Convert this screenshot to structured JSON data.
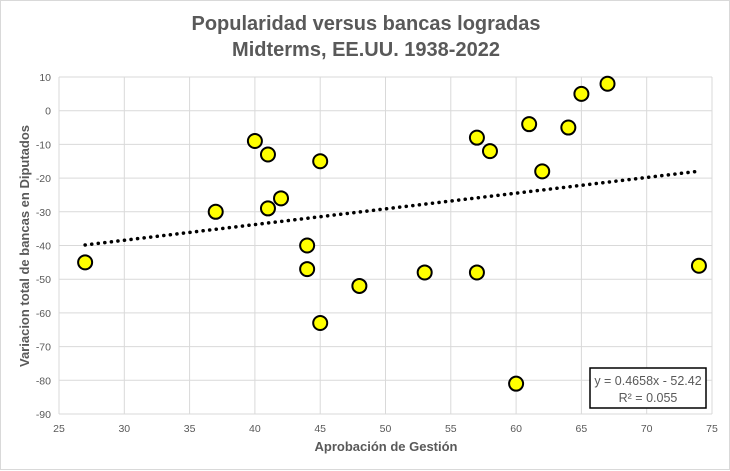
{
  "chart_data": {
    "type": "scatter",
    "title": [
      "Popularidad versus bancas logradas",
      "Midterms, EE.UU. 1938-2022"
    ],
    "xlabel": "Aprobación de Gestión",
    "ylabel": "Variacion total de bancas en Diputados",
    "xlim": [
      25,
      75
    ],
    "ylim": [
      -90,
      10
    ],
    "xticks": [
      25,
      30,
      35,
      40,
      45,
      50,
      55,
      60,
      65,
      70,
      75
    ],
    "yticks": [
      10,
      0,
      -10,
      -20,
      -30,
      -40,
      -50,
      -60,
      -70,
      -80,
      -90
    ],
    "grid": true,
    "points": [
      [
        27,
        -45
      ],
      [
        37,
        -30
      ],
      [
        40,
        -9
      ],
      [
        41,
        -13
      ],
      [
        41,
        -29
      ],
      [
        42,
        -26
      ],
      [
        44,
        -40
      ],
      [
        44,
        -47
      ],
      [
        45,
        -15
      ],
      [
        45,
        -63
      ],
      [
        48,
        -52
      ],
      [
        53,
        -48
      ],
      [
        57,
        -8
      ],
      [
        57,
        -48
      ],
      [
        58,
        -12
      ],
      [
        60,
        -81
      ],
      [
        61,
        -4
      ],
      [
        62,
        -18
      ],
      [
        64,
        -5
      ],
      [
        65,
        5
      ],
      [
        67,
        8
      ],
      [
        74,
        -46
      ]
    ],
    "trendline": {
      "type": "linear",
      "slope": 0.4658,
      "intercept": -52.42,
      "x_range": [
        27,
        74
      ],
      "style": "dotted",
      "color": "#000000"
    },
    "equation_label": "y = 0.4658x - 52.42",
    "r2_label": "R² = 0.055",
    "marker_color": "#ffff00",
    "marker_edge": "#000000"
  }
}
